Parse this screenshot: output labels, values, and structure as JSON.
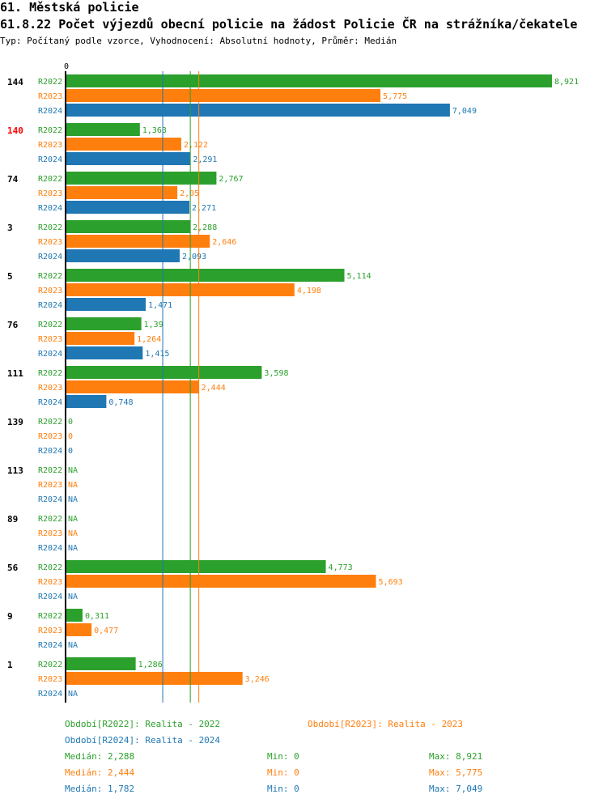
{
  "header": {
    "title": "61. Městská policie",
    "subtitle": "61.8.22 Počet výjezdů obecní policie na žádost Policie ČR na strážníka/čekatele",
    "meta": "Typ: Počítaný podle vzorce, Vyhodnocení: Absolutní hodnoty, Průměr: Medián"
  },
  "colors": {
    "R2022": "#2ca02c",
    "R2023": "#ff7f0e",
    "R2024": "#1f77b4",
    "highlight": "#ff0000"
  },
  "chart_data": {
    "type": "bar",
    "orientation": "horizontal",
    "zero_label": "0",
    "xlim": [
      0,
      8.921
    ],
    "series_names": [
      "R2022",
      "R2023",
      "R2024"
    ],
    "groups": [
      {
        "label": "144",
        "highlight": false,
        "values": [
          8.921,
          5.775,
          7.049
        ],
        "labels": [
          "8,921",
          "5,775",
          "7,049"
        ]
      },
      {
        "label": "140",
        "highlight": true,
        "values": [
          1.363,
          2.122,
          2.291
        ],
        "labels": [
          "1,363",
          "2,122",
          "2,291"
        ]
      },
      {
        "label": "74",
        "highlight": false,
        "values": [
          2.767,
          2.05,
          2.271
        ],
        "labels": [
          "2,767",
          "2,05",
          "2,271"
        ]
      },
      {
        "label": "3",
        "highlight": false,
        "values": [
          2.288,
          2.646,
          2.093
        ],
        "labels": [
          "2,288",
          "2,646",
          "2,093"
        ]
      },
      {
        "label": "5",
        "highlight": false,
        "values": [
          5.114,
          4.198,
          1.471
        ],
        "labels": [
          "5,114",
          "4,198",
          "1,471"
        ]
      },
      {
        "label": "76",
        "highlight": false,
        "values": [
          1.39,
          1.264,
          1.415
        ],
        "labels": [
          "1,39",
          "1,264",
          "1,415"
        ]
      },
      {
        "label": "111",
        "highlight": false,
        "values": [
          3.598,
          2.444,
          0.748
        ],
        "labels": [
          "3,598",
          "2,444",
          "0,748"
        ]
      },
      {
        "label": "139",
        "highlight": false,
        "values": [
          0,
          0,
          0
        ],
        "labels": [
          "0",
          "0",
          "0"
        ]
      },
      {
        "label": "113",
        "highlight": false,
        "values": [
          null,
          null,
          null
        ],
        "labels": [
          "NA",
          "NA",
          "NA"
        ]
      },
      {
        "label": "89",
        "highlight": false,
        "values": [
          null,
          null,
          null
        ],
        "labels": [
          "NA",
          "NA",
          "NA"
        ]
      },
      {
        "label": "56",
        "highlight": false,
        "values": [
          4.773,
          5.693,
          null
        ],
        "labels": [
          "4,773",
          "5,693",
          "NA"
        ]
      },
      {
        "label": "9",
        "highlight": false,
        "values": [
          0.311,
          0.477,
          null
        ],
        "labels": [
          "0,311",
          "0,477",
          "NA"
        ]
      },
      {
        "label": "1",
        "highlight": false,
        "values": [
          1.286,
          3.246,
          null
        ],
        "labels": [
          "1,286",
          "3,246",
          "NA"
        ]
      }
    ],
    "median_lines": [
      {
        "series": "R2024",
        "value": 1.782
      },
      {
        "series": "R2022",
        "value": 2.288
      },
      {
        "series": "R2023",
        "value": 2.444
      }
    ]
  },
  "legend": {
    "periods": [
      {
        "series": "R2022",
        "text": "Období[R2022]: Realita - 2022"
      },
      {
        "series": "R2023",
        "text": "Období[R2023]: Realita - 2023"
      },
      {
        "series": "R2024",
        "text": "Období[R2024]: Realita - 2024"
      }
    ],
    "stats": [
      {
        "series": "R2022",
        "median": "Medián: 2,288",
        "min": "Min: 0",
        "max": "Max: 8,921"
      },
      {
        "series": "R2023",
        "median": "Medián: 2,444",
        "min": "Min: 0",
        "max": "Max: 5,775"
      },
      {
        "series": "R2024",
        "median": "Medián: 1,782",
        "min": "Min: 0",
        "max": "Max: 7,049"
      }
    ]
  }
}
